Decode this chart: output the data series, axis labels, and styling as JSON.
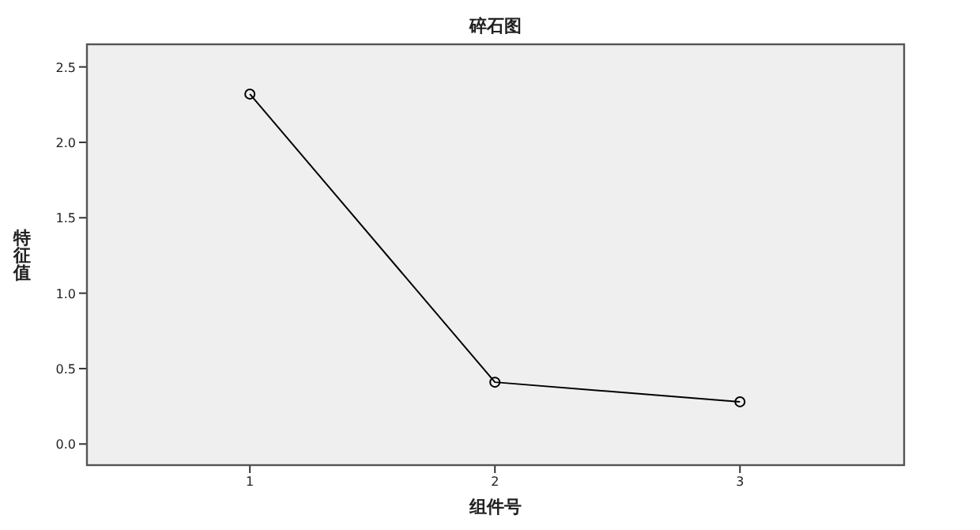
{
  "chart_data": {
    "type": "line",
    "title": "碎石图",
    "xlabel": "组件号",
    "ylabel": "特征值",
    "x": [
      1,
      2,
      3
    ],
    "series": [
      {
        "color": "#000000",
        "values": [
          2.32,
          0.41,
          0.28
        ]
      }
    ],
    "xlim": [
      0.335,
      3.67
    ],
    "xticks": [
      1,
      2,
      3
    ],
    "ylim": [
      -0.14,
      2.65
    ],
    "yticks": [
      {
        "value": 0,
        "label": "0.0"
      },
      {
        "value": 0.5,
        "label": "0.5"
      },
      {
        "value": 1,
        "label": "1.0"
      },
      {
        "value": 1.5,
        "label": "1.5"
      },
      {
        "value": 2,
        "label": "2.0"
      },
      {
        "value": 2.5,
        "label": "2.5"
      }
    ],
    "marker": "circle",
    "line_style": "solid",
    "grid": false
  }
}
